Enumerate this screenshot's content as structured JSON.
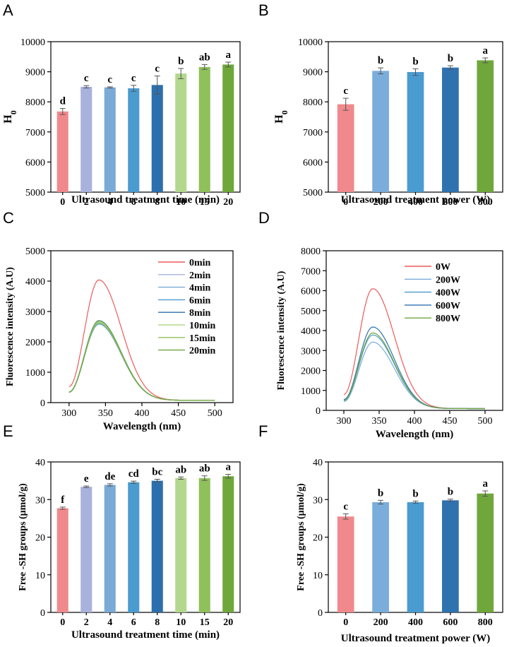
{
  "figure": {
    "panel_letters": [
      "A",
      "B",
      "C",
      "D",
      "E",
      "F"
    ]
  },
  "chart_data": [
    {
      "id": "A",
      "type": "bar",
      "title": "",
      "xlabel": "Ultrasound treatment time (min)",
      "ylabel": "H",
      "ylabel_sub": "0",
      "ylim": [
        5000,
        10000
      ],
      "yticks": [
        5000,
        6000,
        7000,
        8000,
        9000,
        10000
      ],
      "categories": [
        "0",
        "2",
        "4",
        "6",
        "8",
        "10",
        "15",
        "20"
      ],
      "values": [
        7680,
        8500,
        8480,
        8450,
        8560,
        8940,
        9160,
        9240
      ],
      "errors": [
        100,
        40,
        20,
        100,
        300,
        170,
        80,
        80
      ],
      "letters": [
        "d",
        "c",
        "c",
        "c",
        "c",
        "b",
        "ab",
        "a"
      ],
      "colors": [
        "#f0898c",
        "#a8b2dc",
        "#7aaad6",
        "#4a9bd0",
        "#2c6fad",
        "#b3d78c",
        "#8fc05a",
        "#6fa73b"
      ]
    },
    {
      "id": "B",
      "type": "bar",
      "title": "",
      "xlabel": "Ultrasound treatment power (W)",
      "ylabel": "H",
      "ylabel_sub": "0",
      "ylim": [
        5000,
        10000
      ],
      "yticks": [
        5000,
        6000,
        7000,
        8000,
        9000,
        10000
      ],
      "categories": [
        "0",
        "200",
        "400",
        "600",
        "800"
      ],
      "values": [
        7920,
        9030,
        8990,
        9140,
        9380
      ],
      "errors": [
        200,
        100,
        110,
        60,
        80
      ],
      "letters": [
        "c",
        "b",
        "b",
        "b",
        "a"
      ],
      "colors": [
        "#f0898c",
        "#7aaddb",
        "#4a9bd0",
        "#2e72b0",
        "#6fa73b"
      ]
    },
    {
      "id": "C",
      "type": "line",
      "title": "",
      "xlabel": "Wavelength (nm)",
      "ylabel": "Fluorescence intensity (A.U)",
      "xlim": [
        300,
        500
      ],
      "xticks": [
        300,
        350,
        400,
        450,
        500
      ],
      "ylim": [
        0,
        5000
      ],
      "yticks": [
        0,
        1000,
        2000,
        3000,
        4000,
        5000
      ],
      "legend_position": "top-right",
      "series": [
        {
          "name": "0min",
          "color": "#ee5a5a",
          "peak": 4040
        },
        {
          "name": "2min",
          "color": "#a8b2dc",
          "peak": 2640
        },
        {
          "name": "4min",
          "color": "#7aaad6",
          "peak": 2580
        },
        {
          "name": "6min",
          "color": "#4a9bd0",
          "peak": 2610
        },
        {
          "name": "8min",
          "color": "#2c6fad",
          "peak": 2700
        },
        {
          "name": "10min",
          "color": "#b3d78c",
          "peak": 2660
        },
        {
          "name": "15min",
          "color": "#8fc05a",
          "peak": 2620
        },
        {
          "name": "20min",
          "color": "#6fa73b",
          "peak": 2690
        }
      ],
      "shape": {
        "start_ratio": 0.13,
        "peak_x": 341,
        "end_value": 75
      }
    },
    {
      "id": "D",
      "type": "line",
      "title": "",
      "xlabel": "Wavelength (nm)",
      "ylabel": "Fluorescence intensity (A.U)",
      "xlim": [
        300,
        500
      ],
      "xticks": [
        300,
        350,
        400,
        450,
        500
      ],
      "ylim": [
        0,
        8000
      ],
      "yticks": [
        0,
        1000,
        2000,
        3000,
        4000,
        5000,
        6000,
        7000,
        8000
      ],
      "legend_position": "top-right",
      "series": [
        {
          "name": "0W",
          "color": "#ee5a5a",
          "peak": 6100
        },
        {
          "name": "200W",
          "color": "#7aaddb",
          "peak": 3420
        },
        {
          "name": "400W",
          "color": "#4a9bd0",
          "peak": 3780
        },
        {
          "name": "600W",
          "color": "#2e72b0",
          "peak": 4180
        },
        {
          "name": "800W",
          "color": "#6fa73b",
          "peak": 3880
        }
      ],
      "shape": {
        "start_ratio": 0.13,
        "peak_x": 341,
        "end_value": 90
      }
    },
    {
      "id": "E",
      "type": "bar",
      "title": "",
      "xlabel": "Ultrasound treatment time (min)",
      "ylabel": "Free -SH groups (μmol/g)",
      "ylim": [
        0,
        40
      ],
      "yticks": [
        0,
        10,
        20,
        30,
        40
      ],
      "categories": [
        "0",
        "2",
        "4",
        "6",
        "8",
        "10",
        "15",
        "20"
      ],
      "values": [
        27.7,
        33.4,
        33.9,
        34.6,
        35.0,
        35.7,
        35.7,
        36.2
      ],
      "errors": [
        0.3,
        0.2,
        0.3,
        0.3,
        0.4,
        0.3,
        0.6,
        0.5
      ],
      "letters": [
        "f",
        "e",
        "de",
        "cd",
        "bc",
        "ab",
        "ab",
        "a"
      ],
      "colors": [
        "#f0898c",
        "#a8b2dc",
        "#7aaad6",
        "#4a9bd0",
        "#2c6fad",
        "#b3d78c",
        "#8fc05a",
        "#6fa73b"
      ]
    },
    {
      "id": "F",
      "type": "bar",
      "title": "",
      "xlabel": "Ultrasound treatment power (W)",
      "ylabel": "Free -SH groups (μmol/g)",
      "ylim": [
        0,
        40
      ],
      "yticks": [
        0,
        10,
        20,
        30,
        40
      ],
      "categories": [
        "0",
        "200",
        "400",
        "600",
        "800"
      ],
      "values": [
        25.5,
        29.3,
        29.3,
        29.8,
        31.6
      ],
      "errors": [
        0.7,
        0.5,
        0.3,
        0.3,
        0.7
      ],
      "letters": [
        "c",
        "b",
        "b",
        "b",
        "a"
      ],
      "colors": [
        "#f0898c",
        "#7aaddb",
        "#4a9bd0",
        "#2e72b0",
        "#6fa73b"
      ]
    }
  ]
}
